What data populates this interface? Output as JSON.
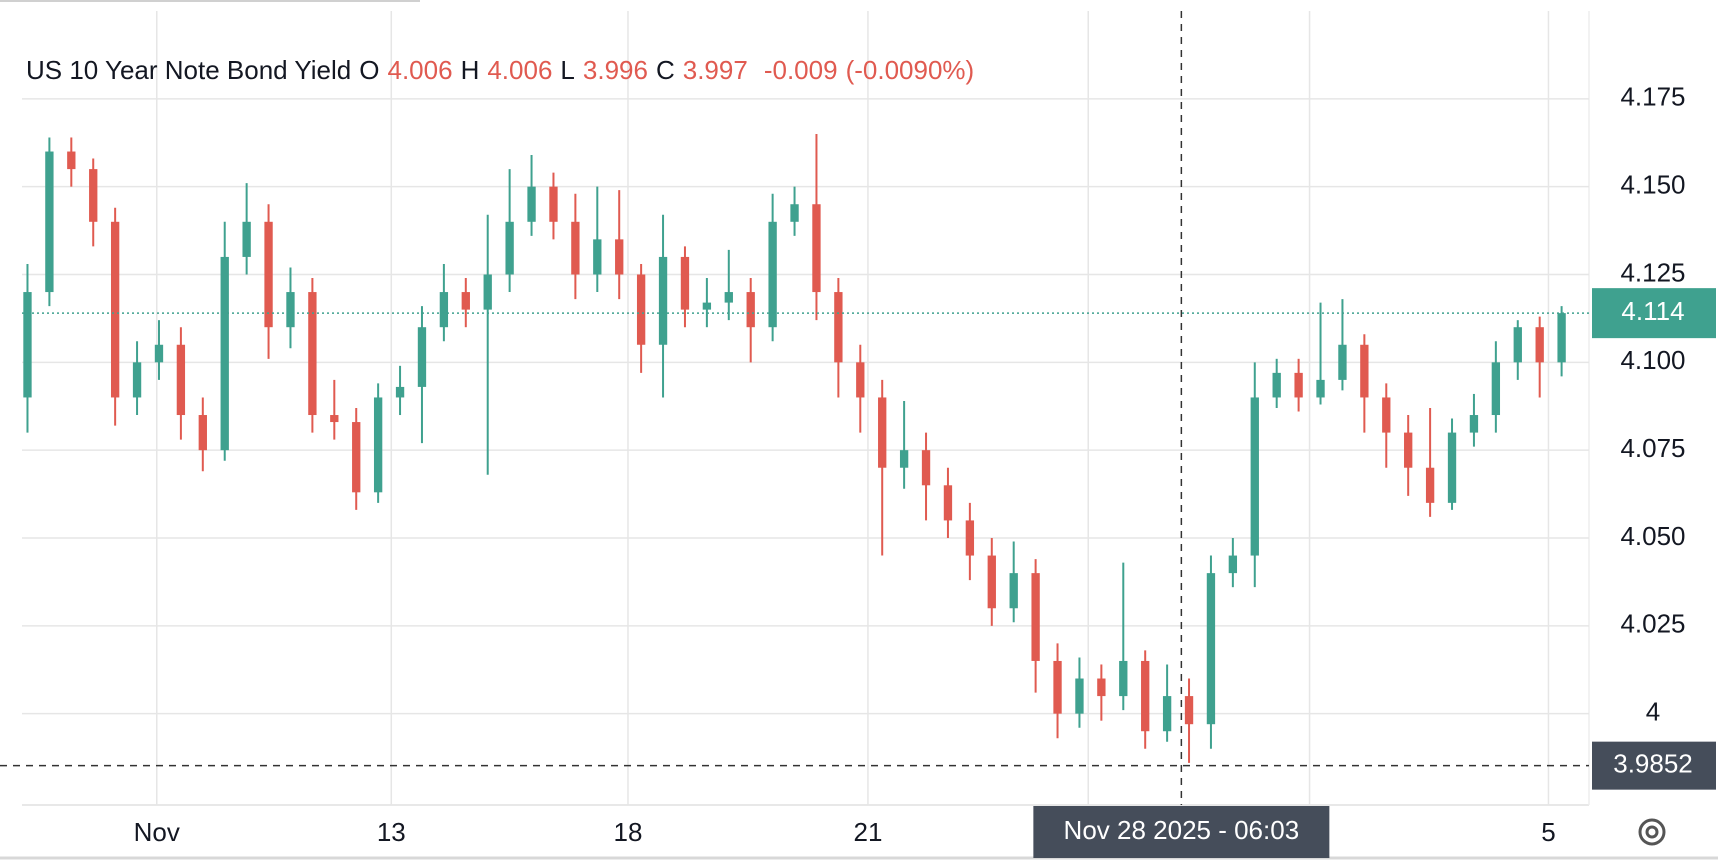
{
  "chart_data": {
    "type": "candlestick",
    "title": "US 10 Year Note Bond Yield",
    "ohlc_legend": [
      {
        "label": "O",
        "value": 4.006
      },
      {
        "label": "H",
        "value": 4.006
      },
      {
        "label": "L",
        "value": 3.996
      },
      {
        "label": "C",
        "value": 3.997
      }
    ],
    "change": -0.009,
    "change_percent": {
      "value": -0.009,
      "label": "(-0.0090%)"
    },
    "up_color": "#3fa18f",
    "down_color": "#e05a50",
    "open": [
      4.09,
      4.12,
      4.16,
      4.155,
      4.14,
      4.09,
      4.1,
      4.105,
      4.085,
      4.075,
      4.13,
      4.14,
      4.11,
      4.12,
      4.085,
      4.083,
      4.063,
      4.09,
      4.093,
      4.11,
      4.12,
      4.115,
      4.125,
      4.14,
      4.15,
      4.14,
      4.125,
      4.135,
      4.125,
      4.105,
      4.13,
      4.115,
      4.117,
      4.12,
      4.11,
      4.14,
      4.145,
      4.12,
      4.1,
      4.09,
      4.07,
      4.075,
      4.065,
      4.055,
      4.045,
      4.03,
      4.04,
      4.015,
      4.0,
      4.01,
      4.005,
      4.015,
      3.995,
      4.005,
      3.997,
      4.04,
      4.045,
      4.09,
      4.097,
      4.09,
      4.095,
      4.105,
      4.09,
      4.08,
      4.07,
      4.06,
      4.08,
      4.085,
      4.1,
      4.11,
      4.1
    ],
    "high": [
      4.128,
      4.164,
      4.164,
      4.158,
      4.144,
      4.106,
      4.112,
      4.11,
      4.09,
      4.14,
      4.151,
      4.145,
      4.127,
      4.124,
      4.095,
      4.087,
      4.094,
      4.099,
      4.116,
      4.128,
      4.124,
      4.142,
      4.155,
      4.159,
      4.154,
      4.148,
      4.15,
      4.149,
      4.128,
      4.142,
      4.133,
      4.124,
      4.132,
      4.124,
      4.148,
      4.15,
      4.165,
      4.124,
      4.105,
      4.095,
      4.089,
      4.08,
      4.07,
      4.06,
      4.05,
      4.049,
      4.044,
      4.02,
      4.016,
      4.014,
      4.043,
      4.018,
      4.014,
      4.01,
      4.045,
      4.05,
      4.1,
      4.101,
      4.101,
      4.117,
      4.118,
      4.108,
      4.094,
      4.085,
      4.087,
      4.084,
      4.091,
      4.106,
      4.112,
      4.113,
      4.116
    ],
    "low": [
      4.08,
      4.116,
      4.15,
      4.133,
      4.082,
      4.085,
      4.095,
      4.078,
      4.069,
      4.072,
      4.125,
      4.101,
      4.104,
      4.08,
      4.078,
      4.058,
      4.06,
      4.085,
      4.077,
      4.106,
      4.11,
      4.068,
      4.12,
      4.136,
      4.135,
      4.118,
      4.12,
      4.118,
      4.097,
      4.09,
      4.11,
      4.11,
      4.112,
      4.1,
      4.106,
      4.136,
      4.112,
      4.09,
      4.08,
      4.045,
      4.064,
      4.055,
      4.05,
      4.038,
      4.025,
      4.026,
      4.006,
      3.993,
      3.996,
      3.998,
      4.001,
      3.99,
      3.992,
      3.986,
      3.99,
      4.036,
      4.036,
      4.087,
      4.086,
      4.088,
      4.092,
      4.08,
      4.07,
      4.062,
      4.056,
      4.058,
      4.076,
      4.08,
      4.095,
      4.09,
      4.096
    ],
    "close": [
      4.12,
      4.16,
      4.155,
      4.14,
      4.09,
      4.1,
      4.105,
      4.085,
      4.075,
      4.13,
      4.14,
      4.11,
      4.12,
      4.085,
      4.083,
      4.063,
      4.09,
      4.093,
      4.11,
      4.12,
      4.115,
      4.125,
      4.14,
      4.15,
      4.14,
      4.125,
      4.135,
      4.125,
      4.105,
      4.13,
      4.115,
      4.117,
      4.12,
      4.11,
      4.14,
      4.145,
      4.12,
      4.1,
      4.09,
      4.07,
      4.075,
      4.065,
      4.055,
      4.045,
      4.03,
      4.04,
      4.015,
      4.0,
      4.01,
      4.005,
      4.015,
      3.995,
      4.005,
      3.997,
      4.04,
      4.045,
      4.09,
      4.097,
      4.09,
      4.095,
      4.105,
      4.09,
      4.08,
      4.07,
      4.06,
      4.08,
      4.085,
      4.1,
      4.11,
      4.1,
      4.114
    ],
    "xlim": [
      -0.25,
      71.25
    ],
    "xticks": [
      {
        "value": 5.9,
        "label": "Nov"
      },
      {
        "value": 16.6,
        "label": "13"
      },
      {
        "value": 27.4,
        "label": "18"
      },
      {
        "value": 38.35,
        "label": "21"
      },
      {
        "value": 48.4,
        "label": null
      },
      {
        "value": 58.5,
        "label": null
      },
      {
        "value": 69.4,
        "label": "5"
      }
    ],
    "ylim": [
      3.974,
      4.2
    ],
    "yticks": [
      4,
      4.025,
      {
        "value": 4.05,
        "label": "4.050"
      },
      4.075,
      {
        "value": 4.1,
        "label": "4.100"
      },
      4.125,
      {
        "value": 4.15,
        "label": "4.150"
      },
      4.175
    ],
    "grid": true,
    "last_price": 4.114,
    "crosshair": {
      "x": 52.65,
      "x_label": "Nov 28 2025 - 06:03",
      "y": 3.9852
    }
  }
}
